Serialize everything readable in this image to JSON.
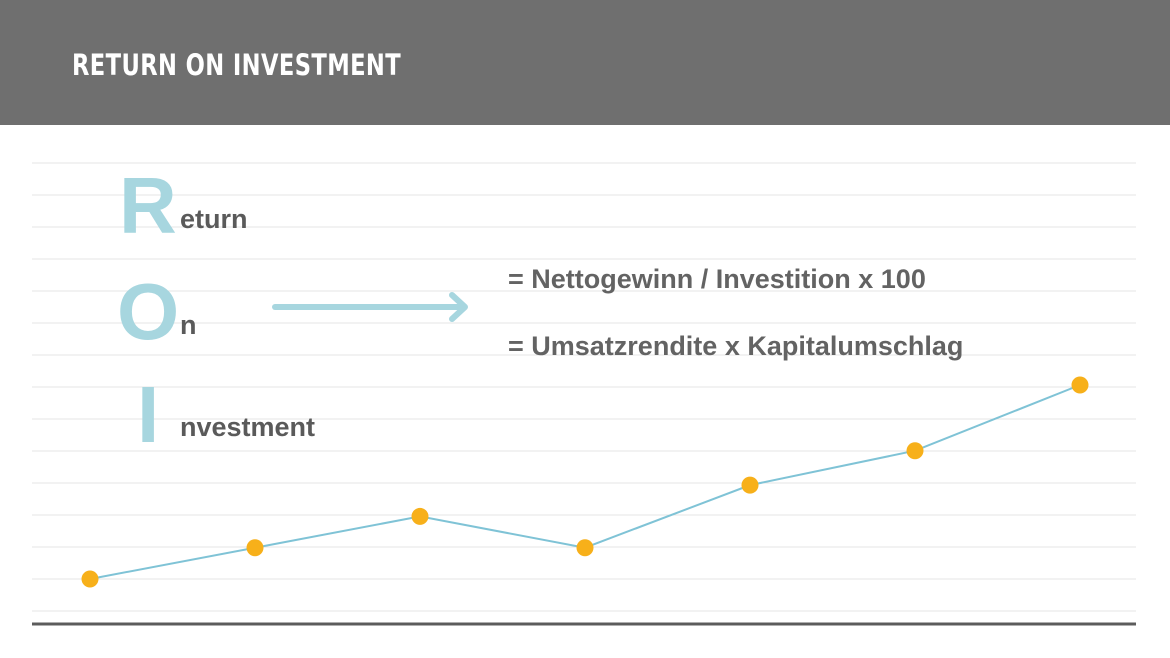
{
  "header": {
    "title": "RETURN ON INVESTMENT"
  },
  "acronym": [
    {
      "letter": "R",
      "rest": "eturn"
    },
    {
      "letter": "O",
      "rest": "n"
    },
    {
      "letter": "I",
      "rest": "nvestment"
    }
  ],
  "formulas": [
    "= Nettogewinn / Investition x 100",
    "= Umsatzrendite x Kapitalumschlag"
  ],
  "colors": {
    "header_bg": "#6f6f6f",
    "accent": "#a7d6df",
    "line": "#7fc3d6",
    "marker": "#f7b01a"
  },
  "chart_data": {
    "type": "line",
    "x": [
      1,
      2,
      3,
      4,
      5,
      6,
      7
    ],
    "y": [
      0,
      1,
      2,
      1,
      3,
      4.1,
      6.2
    ],
    "ylim": [
      0,
      6.2
    ],
    "grid": true
  }
}
